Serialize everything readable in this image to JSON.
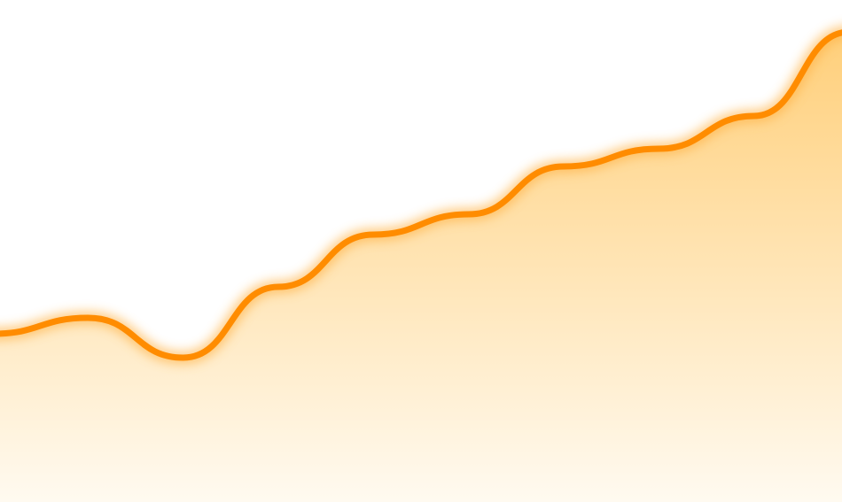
{
  "chart_data": {
    "type": "area",
    "title": "",
    "xlabel": "",
    "ylabel": "",
    "x": [
      0,
      1,
      2,
      3,
      4,
      5,
      6,
      7,
      8,
      9
    ],
    "series": [
      {
        "values": [
          190,
          208,
          163,
          243,
          302,
          325,
          379,
          399,
          436,
          531
        ]
      }
    ],
    "ylim": [
      0,
      567
    ],
    "grid": false,
    "legend": "none",
    "smooth": true
  },
  "colors": {
    "line": "#ff8c00",
    "line_glow": "#ffb347",
    "fill_top": "#ffcf7a",
    "fill_bottom": "#fffaf0",
    "background": "#ffffff"
  }
}
